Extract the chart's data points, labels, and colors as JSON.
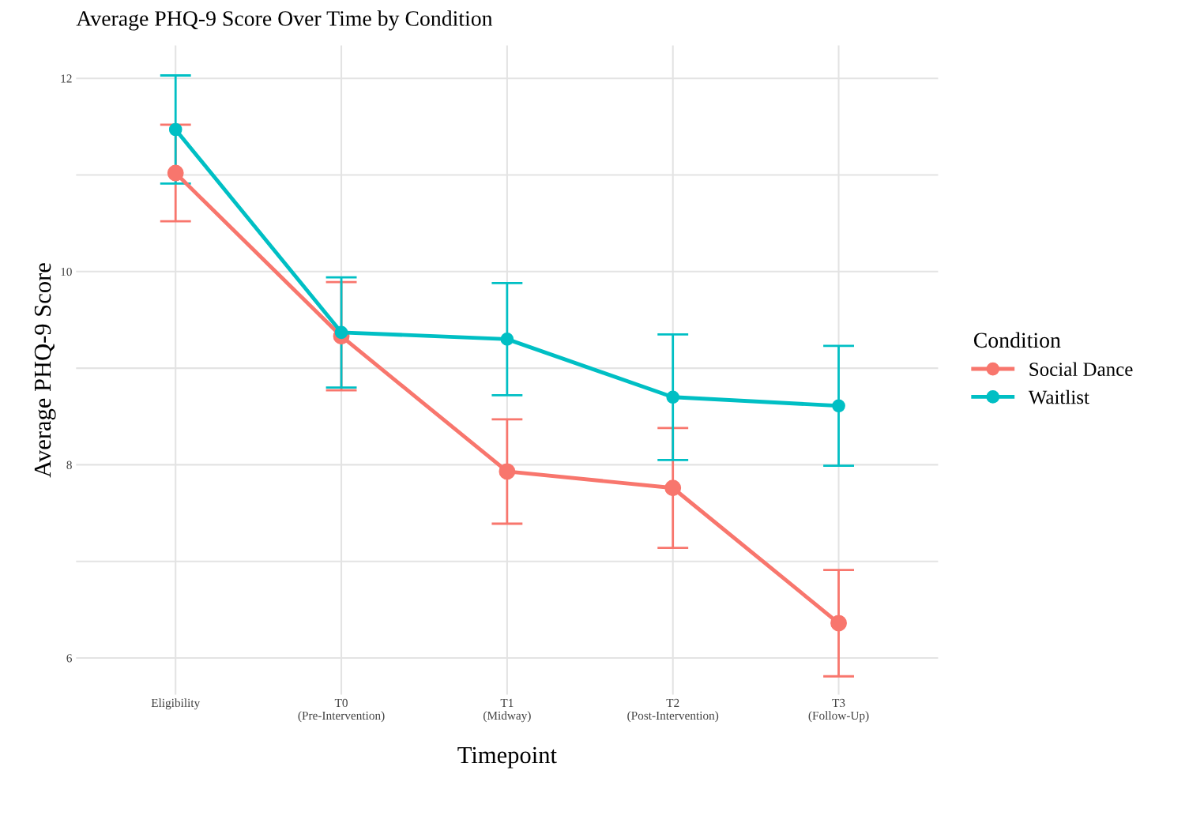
{
  "chart_data": {
    "type": "line",
    "title": "Average PHQ-9 Score Over Time by Condition",
    "xlabel": "Timepoint",
    "ylabel": "Average PHQ-9 Score",
    "legend_title": "Condition",
    "categories": [
      "Eligibility",
      "T0\n(Pre-Intervention)",
      "T1\n(Midway)",
      "T2\n(Post-Intervention)",
      "T3\n(Follow-Up)"
    ],
    "series": [
      {
        "name": "Social Dance",
        "color": "#f8766d",
        "values": [
          11.02,
          9.33,
          7.93,
          7.76,
          6.36
        ],
        "errors": [
          0.5,
          0.56,
          0.54,
          0.62,
          0.55
        ]
      },
      {
        "name": "Waitlist",
        "color": "#00bfc4",
        "values": [
          11.47,
          9.37,
          9.3,
          8.7,
          8.61
        ],
        "errors": [
          0.56,
          0.57,
          0.58,
          0.65,
          0.62
        ]
      }
    ],
    "ylim": [
      5.62,
      12.34
    ],
    "yticks": [
      6,
      {
        "value": 7,
        "label": null
      },
      8,
      {
        "value": 9,
        "label": null
      },
      10,
      {
        "value": 11,
        "label": null
      },
      12
    ],
    "grid": true,
    "legend": "right",
    "marker": "circle",
    "line_style": "solid"
  }
}
